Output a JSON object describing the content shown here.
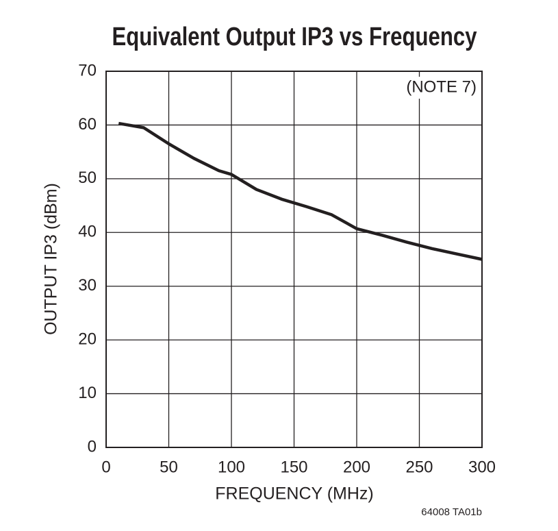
{
  "chart_data": {
    "type": "line",
    "title": "Equivalent Output IP3 vs Frequency",
    "x_label": "FREQUENCY (MHz)",
    "y_label": "OUTPUT IP3 (dBm)",
    "annotation": "(NOTE 7)",
    "figure_id": "64008 TA01b",
    "x": [
      10,
      30,
      50,
      70,
      90,
      100,
      120,
      140,
      160,
      180,
      200,
      220,
      240,
      260,
      280,
      300
    ],
    "series": [
      {
        "color": "#231f20",
        "values": [
          60.3,
          59.5,
          56.5,
          53.8,
          51.5,
          50.8,
          48,
          46.2,
          44.8,
          43.3,
          40.7,
          39.5,
          38.2,
          37,
          36,
          35
        ]
      }
    ],
    "xlim": [
      0,
      300
    ],
    "xticks": [
      0,
      50,
      100,
      150,
      200,
      250,
      300
    ],
    "ylim": [
      0,
      70
    ],
    "yticks": [
      0,
      10,
      20,
      30,
      40,
      50,
      60,
      70
    ],
    "grid": true
  }
}
